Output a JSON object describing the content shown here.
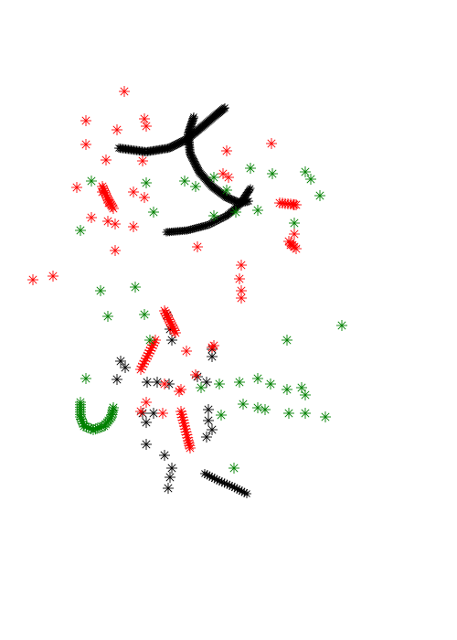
{
  "figure": {
    "kind": "scatter of asterisk markers forming handwritten-like strokes",
    "background": "#ffffff",
    "colors": {
      "black": "#000000",
      "red": "#ff0000",
      "green": "#008000"
    },
    "marker_icon": "asterisk-icon"
  }
}
